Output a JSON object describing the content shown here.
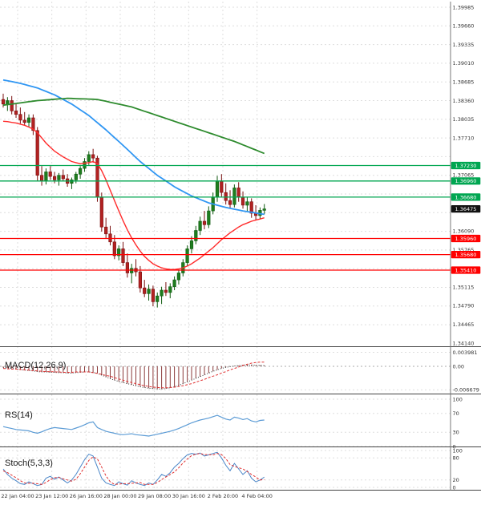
{
  "chart_data": {
    "type": "candlestick",
    "title": "",
    "x_axis_labels": [
      "22 Jan 04:00",
      "23 Jan 12:00",
      "26 Jan 16:00",
      "28 Jan 00:00",
      "29 Jan 08:00",
      "30 Jan 16:00",
      "2 Feb 20:00",
      "4 Feb 04:00"
    ],
    "price_axis": {
      "max": 1.39985,
      "min": 1.3414,
      "step": 0.00325
    },
    "price_axis_labels": [
      "1.39985",
      "1.39660",
      "1.39335",
      "1.39010",
      "1.38685",
      "1.38360",
      "1.38035",
      "1.37710",
      "1.37065",
      "1.36090",
      "1.35765",
      "1.35115",
      "1.34790",
      "1.34465",
      "1.34140"
    ],
    "candles": [
      [
        1.3838,
        1.3848,
        1.3824,
        1.383
      ],
      [
        1.383,
        1.3842,
        1.3818,
        1.3836
      ],
      [
        1.3836,
        1.3844,
        1.3812,
        1.3818
      ],
      [
        1.3818,
        1.383,
        1.3806,
        1.3812
      ],
      [
        1.3812,
        1.3824,
        1.3796,
        1.3802
      ],
      [
        1.3802,
        1.3816,
        1.3792,
        1.3798
      ],
      [
        1.3798,
        1.3812,
        1.379,
        1.3806
      ],
      [
        1.3806,
        1.3812,
        1.3776,
        1.3784
      ],
      [
        1.3784,
        1.379,
        1.3696,
        1.3706
      ],
      [
        1.3706,
        1.3722,
        1.3688,
        1.3696
      ],
      [
        1.3696,
        1.3718,
        1.369,
        1.3712
      ],
      [
        1.3712,
        1.3722,
        1.3698,
        1.3704
      ],
      [
        1.3704,
        1.3712,
        1.3692,
        1.3698
      ],
      [
        1.3698,
        1.371,
        1.3688,
        1.3706
      ],
      [
        1.3706,
        1.3716,
        1.3696,
        1.37
      ],
      [
        1.37,
        1.3708,
        1.3686,
        1.3692
      ],
      [
        1.3692,
        1.3702,
        1.3682,
        1.3698
      ],
      [
        1.3698,
        1.3712,
        1.3692,
        1.3708
      ],
      [
        1.3708,
        1.3722,
        1.37,
        1.3718
      ],
      [
        1.3718,
        1.3736,
        1.3712,
        1.373
      ],
      [
        1.373,
        1.3748,
        1.3724,
        1.3742
      ],
      [
        1.3742,
        1.3752,
        1.3728,
        1.3736
      ],
      [
        1.3736,
        1.374,
        1.366,
        1.3668
      ],
      [
        1.3668,
        1.3676,
        1.3608,
        1.3616
      ],
      [
        1.3616,
        1.3632,
        1.3596,
        1.3604
      ],
      [
        1.3604,
        1.3618,
        1.3584,
        1.359
      ],
      [
        1.359,
        1.3602,
        1.356,
        1.3566
      ],
      [
        1.3566,
        1.3584,
        1.3558,
        1.3578
      ],
      [
        1.3578,
        1.359,
        1.3548,
        1.3554
      ],
      [
        1.3554,
        1.357,
        1.3528,
        1.3536
      ],
      [
        1.3536,
        1.3552,
        1.3518,
        1.3544
      ],
      [
        1.3544,
        1.356,
        1.353,
        1.3538
      ],
      [
        1.3538,
        1.3548,
        1.3502,
        1.351
      ],
      [
        1.351,
        1.3524,
        1.3494,
        1.35
      ],
      [
        1.35,
        1.3516,
        1.3488,
        1.3508
      ],
      [
        1.3508,
        1.3514,
        1.3478,
        1.3486
      ],
      [
        1.3486,
        1.3502,
        1.3476,
        1.3496
      ],
      [
        1.3496,
        1.3512,
        1.3482,
        1.3506
      ],
      [
        1.3506,
        1.352,
        1.3496,
        1.3502
      ],
      [
        1.3502,
        1.3518,
        1.3492,
        1.3512
      ],
      [
        1.3512,
        1.353,
        1.3506,
        1.3524
      ],
      [
        1.3524,
        1.3542,
        1.3516,
        1.3536
      ],
      [
        1.3536,
        1.356,
        1.353,
        1.3554
      ],
      [
        1.3554,
        1.3584,
        1.3548,
        1.3578
      ],
      [
        1.3578,
        1.36,
        1.357,
        1.3592
      ],
      [
        1.3592,
        1.3618,
        1.3586,
        1.361
      ],
      [
        1.361,
        1.3634,
        1.3602,
        1.3626
      ],
      [
        1.3626,
        1.3644,
        1.3612,
        1.362
      ],
      [
        1.362,
        1.3652,
        1.3614,
        1.3644
      ],
      [
        1.3644,
        1.3676,
        1.3638,
        1.3668
      ],
      [
        1.3668,
        1.3705,
        1.366,
        1.3696
      ],
      [
        1.3696,
        1.3708,
        1.3668,
        1.3676
      ],
      [
        1.3676,
        1.3692,
        1.3655,
        1.3662
      ],
      [
        1.3662,
        1.368,
        1.3648,
        1.3655
      ],
      [
        1.3655,
        1.369,
        1.365,
        1.3684
      ],
      [
        1.3684,
        1.3694,
        1.366,
        1.3668
      ],
      [
        1.3668,
        1.3678,
        1.3648,
        1.3654
      ],
      [
        1.3654,
        1.3668,
        1.3642,
        1.366
      ],
      [
        1.366,
        1.3666,
        1.3632,
        1.364
      ],
      [
        1.364,
        1.3654,
        1.3628,
        1.3636
      ],
      [
        1.3636,
        1.365,
        1.363,
        1.3645
      ],
      [
        1.3645,
        1.3656,
        1.3638,
        1.36475
      ]
    ],
    "moving_averages": [
      {
        "name": "ma-fast",
        "color": "#ff2b2b",
        "values": [
          1.38,
          1.37995,
          1.3798,
          1.3797,
          1.3795,
          1.3793,
          1.379,
          1.3786,
          1.378,
          1.3771,
          1.3762,
          1.3755,
          1.3748,
          1.3743,
          1.3738,
          1.3734,
          1.373,
          1.3728,
          1.3726,
          1.3727,
          1.3728,
          1.373,
          1.3726,
          1.3714,
          1.3698,
          1.368,
          1.3662,
          1.3644,
          1.3627,
          1.3611,
          1.3597,
          1.3585,
          1.3574,
          1.3565,
          1.3558,
          1.3552,
          1.3548,
          1.3545,
          1.3543,
          1.3542,
          1.3542,
          1.3543,
          1.3545,
          1.3548,
          1.3552,
          1.3557,
          1.3562,
          1.3568,
          1.3574,
          1.358,
          1.3587,
          1.3594,
          1.36,
          1.3606,
          1.3611,
          1.3616,
          1.362,
          1.3623,
          1.3626,
          1.3628,
          1.363,
          1.3632
        ]
      },
      {
        "name": "ma-medium",
        "color": "#2f96f3",
        "values": [
          1.3872,
          1.38705,
          1.3869,
          1.38675,
          1.3866,
          1.3864,
          1.3862,
          1.386,
          1.3858,
          1.3855,
          1.3852,
          1.3849,
          1.3846,
          1.3842,
          1.3838,
          1.3834,
          1.383,
          1.3825,
          1.382,
          1.3815,
          1.381,
          1.38038,
          1.37975,
          1.37913,
          1.3785,
          1.37783,
          1.37715,
          1.37648,
          1.3758,
          1.3751,
          1.3744,
          1.3737,
          1.373,
          1.3724,
          1.3718,
          1.3712,
          1.3706,
          1.3701,
          1.3696,
          1.3691,
          1.3686,
          1.3682,
          1.3678,
          1.3674,
          1.367,
          1.3667,
          1.3664,
          1.3661,
          1.3658,
          1.3656,
          1.3654,
          1.3652,
          1.365,
          1.36485,
          1.3647,
          1.36455,
          1.3644,
          1.36428,
          1.36416,
          1.36404,
          1.36392,
          1.3638
        ]
      },
      {
        "name": "ma-slow",
        "color": "#2e8b2e",
        "values": [
          1.3828,
          1.3829,
          1.383,
          1.3831,
          1.3832,
          1.3833,
          1.3834,
          1.3835,
          1.3836,
          1.38366,
          1.38371,
          1.38377,
          1.38383,
          1.38389,
          1.38394,
          1.384,
          1.38397,
          1.38394,
          1.38391,
          1.38389,
          1.38386,
          1.38383,
          1.3838,
          1.38364,
          1.38348,
          1.38331,
          1.38315,
          1.38299,
          1.38283,
          1.38266,
          1.3825,
          1.38225,
          1.382,
          1.38175,
          1.3815,
          1.38125,
          1.381,
          1.38075,
          1.3805,
          1.38025,
          1.38,
          1.37975,
          1.3795,
          1.37925,
          1.379,
          1.37875,
          1.3785,
          1.37825,
          1.378,
          1.37775,
          1.3775,
          1.37725,
          1.377,
          1.37675,
          1.3765,
          1.3762,
          1.3759,
          1.3756,
          1.3753,
          1.375,
          1.3747,
          1.3744
        ]
      }
    ],
    "levels": {
      "resistance": [
        {
          "label": "1.37230",
          "price": 1.3723
        },
        {
          "label": "1.36960",
          "price": 1.3696
        },
        {
          "label": "1.36680",
          "price": 1.3668
        }
      ],
      "support": [
        {
          "label": "1.35960",
          "price": 1.3596
        },
        {
          "label": "1.35680",
          "price": 1.3568
        },
        {
          "label": "1.35410",
          "price": 1.3541
        }
      ],
      "last_price": {
        "label": "1.36475",
        "price": 1.36475
      }
    },
    "indicators": {
      "macd": {
        "label": "MACD(12,26,9)",
        "axis_labels": [
          "0.003981",
          "0.00",
          "-0.006679"
        ],
        "axis_values": [
          0.003981,
          0,
          -0.006679
        ],
        "histogram": [
          -0.0004,
          -0.0005,
          -0.0006,
          -0.0007,
          -0.0009,
          -0.0011,
          -0.0012,
          -0.0013,
          -0.0015,
          -0.0016,
          -0.0016,
          -0.0017,
          -0.0017,
          -0.0018,
          -0.0018,
          -0.0019,
          -0.0019,
          -0.0018,
          -0.0017,
          -0.0016,
          -0.0016,
          -0.0017,
          -0.002,
          -0.0025,
          -0.003,
          -0.0035,
          -0.0039,
          -0.0043,
          -0.0046,
          -0.0049,
          -0.0052,
          -0.0055,
          -0.0058,
          -0.006,
          -0.0062,
          -0.0063,
          -0.0064,
          -0.0064,
          -0.0063,
          -0.0061,
          -0.0058,
          -0.0054,
          -0.0049,
          -0.0044,
          -0.0039,
          -0.0034,
          -0.0029,
          -0.0024,
          -0.0019,
          -0.0014,
          -0.001,
          -0.0006,
          -0.0003,
          -0.0001,
          0.0001,
          0.0002,
          0.0003,
          0.0004,
          0.0004,
          0.0003,
          0.0003,
          0.0002
        ],
        "signal": [
          -0.0006,
          -0.0007,
          -0.0008,
          -0.0008,
          -0.0009,
          -0.001,
          -0.0011,
          -0.0012,
          -0.0013,
          -0.0014,
          -0.0015,
          -0.0015,
          -0.0016,
          -0.0016,
          -0.0017,
          -0.0017,
          -0.0017,
          -0.0016,
          -0.0016,
          -0.0016,
          -0.0016,
          -0.0018,
          -0.002,
          -0.0023,
          -0.0026,
          -0.0028,
          -0.0032,
          -0.0036,
          -0.0039,
          -0.0043,
          -0.0046,
          -0.0049,
          -0.0052,
          -0.0055,
          -0.0057,
          -0.0059,
          -0.006,
          -0.0061,
          -0.0061,
          -0.006,
          -0.0059,
          -0.0057,
          -0.0055,
          -0.0052,
          -0.0049,
          -0.0045,
          -0.0041,
          -0.0037,
          -0.0032,
          -0.0028,
          -0.0024,
          -0.0019,
          -0.0015,
          -0.001,
          -0.0006,
          -0.0002,
          0.0003,
          0.0006,
          0.0009,
          0.0011,
          0.0012,
          0.0012
        ]
      },
      "rsi": {
        "label": "RS(14)",
        "axis_labels": [
          "100",
          "70",
          "30",
          "0"
        ],
        "axis_values": [
          100,
          70,
          30,
          0
        ],
        "values": [
          42,
          40,
          38,
          36,
          35,
          34,
          33,
          30,
          28,
          31,
          35,
          38,
          40,
          39,
          38,
          37,
          36,
          39,
          42,
          46,
          50,
          52,
          40,
          36,
          32,
          30,
          28,
          26,
          25,
          26,
          27,
          25,
          24,
          23,
          22,
          24,
          26,
          28,
          30,
          32,
          35,
          38,
          42,
          46,
          50,
          53,
          56,
          58,
          60,
          63,
          66,
          62,
          58,
          56,
          62,
          60,
          57,
          59,
          54,
          52,
          55,
          56
        ]
      },
      "stoch": {
        "label": "Stoch(5,3,3)",
        "axis_labels": [
          "100",
          "80",
          "20",
          "0"
        ],
        "axis_values": [
          100,
          80,
          20,
          0
        ],
        "k": [
          50,
          35,
          25,
          18,
          10,
          8,
          15,
          10,
          5,
          8,
          25,
          30,
          22,
          28,
          20,
          12,
          20,
          35,
          55,
          75,
          90,
          85,
          55,
          25,
          12,
          8,
          5,
          15,
          10,
          6,
          18,
          12,
          8,
          5,
          12,
          8,
          20,
          35,
          30,
          40,
          55,
          65,
          78,
          88,
          92,
          90,
          93,
          85,
          88,
          92,
          95,
          80,
          60,
          45,
          65,
          50,
          35,
          45,
          25,
          15,
          20,
          28
        ],
        "d": [
          45,
          40,
          33,
          26,
          18,
          12,
          11,
          11,
          10,
          8,
          13,
          21,
          26,
          27,
          23,
          20,
          17,
          22,
          37,
          55,
          73,
          83,
          77,
          55,
          31,
          15,
          8,
          9,
          10,
          10,
          11,
          12,
          13,
          8,
          8,
          8,
          13,
          21,
          28,
          35,
          42,
          53,
          66,
          77,
          86,
          90,
          92,
          89,
          89,
          88,
          92,
          89,
          78,
          62,
          57,
          53,
          50,
          43,
          35,
          28,
          20,
          21
        ]
      }
    },
    "colors": {
      "bull": "#1e7d1e",
      "bull_stroke": "#0f5a0f",
      "bear": "#b22222",
      "bear_stroke": "#7a1010",
      "resistance": "#00a651",
      "support": "#ff0000",
      "last_price_bg": "#111111",
      "badge_text": "#ffffff",
      "grid": "#dedede",
      "axis_text": "#333333",
      "separator": "#444444",
      "macd_hist": "#8b3a3a",
      "macd_line": "#333333",
      "macd_signal": "#e03030",
      "rsi_line": "#5b9bd5",
      "stoch_k": "#4a86c8",
      "stoch_d": "#e03030"
    }
  }
}
